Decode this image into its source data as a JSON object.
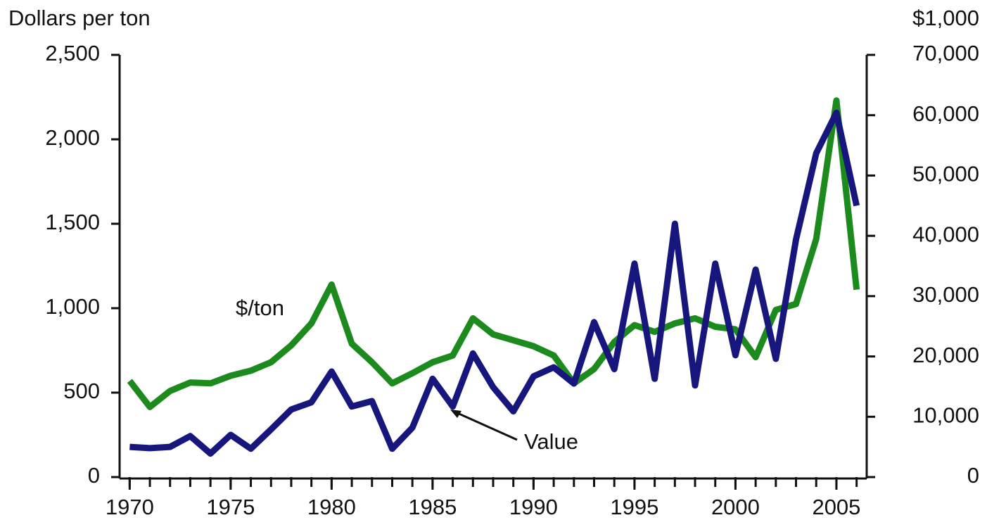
{
  "chart_data": {
    "type": "line",
    "y_title": "Dollars per ton",
    "y2_title": "$1,000",
    "x": [
      1970,
      1971,
      1972,
      1973,
      1974,
      1975,
      1976,
      1977,
      1978,
      1979,
      1980,
      1981,
      1982,
      1983,
      1984,
      1985,
      1986,
      1987,
      1988,
      1989,
      1990,
      1991,
      1992,
      1993,
      1994,
      1995,
      1996,
      1997,
      1998,
      1999,
      2000,
      2001,
      2002,
      2003,
      2004,
      2005,
      2006
    ],
    "xlim": [
      1969.5,
      2006.5
    ],
    "xticks": [
      1970,
      1975,
      1980,
      1985,
      1990,
      1995,
      2000,
      2005
    ],
    "ylim": [
      0,
      2500
    ],
    "yticks": [
      0,
      500,
      {
        "value": 1000,
        "label": "1,000"
      },
      {
        "value": 1500,
        "label": "1,500"
      },
      {
        "value": 2000,
        "label": "2,000"
      },
      {
        "value": 2500,
        "label": "2,500"
      }
    ],
    "y2lim": [
      0,
      70000
    ],
    "y2ticks": [
      0,
      {
        "value": 10000,
        "label": "10,000"
      },
      {
        "value": 20000,
        "label": "20,000"
      },
      {
        "value": 30000,
        "label": "30,000"
      },
      {
        "value": 40000,
        "label": "40,000"
      },
      {
        "value": 50000,
        "label": "50,000"
      },
      {
        "value": 60000,
        "label": "60,000"
      },
      {
        "value": 70000,
        "label": "70,000"
      }
    ],
    "series": [
      {
        "name": "$/ton",
        "color": "#1c8a1c",
        "values": [
          570,
          415,
          510,
          560,
          555,
          600,
          630,
          680,
          780,
          910,
          1140,
          790,
          680,
          555,
          615,
          680,
          720,
          940,
          845,
          810,
          775,
          720,
          555,
          640,
          800,
          900,
          860,
          910,
          940,
          890,
          875,
          710,
          990,
          1025,
          1410,
          2230,
          1110
        ]
      },
      {
        "name": "Value",
        "color": "#16167c",
        "axis": "y2",
        "values": [
          5000,
          4800,
          5000,
          6800,
          3900,
          7000,
          4700,
          7900,
          11200,
          12400,
          17500,
          11700,
          12600,
          4700,
          8200,
          16300,
          11700,
          20500,
          14900,
          10900,
          16700,
          18200,
          15500,
          25700,
          17900,
          35400,
          16300,
          42000,
          15200,
          35400,
          20200,
          34400,
          19600,
          39400,
          53700,
          60400,
          45000
        ]
      }
    ]
  }
}
